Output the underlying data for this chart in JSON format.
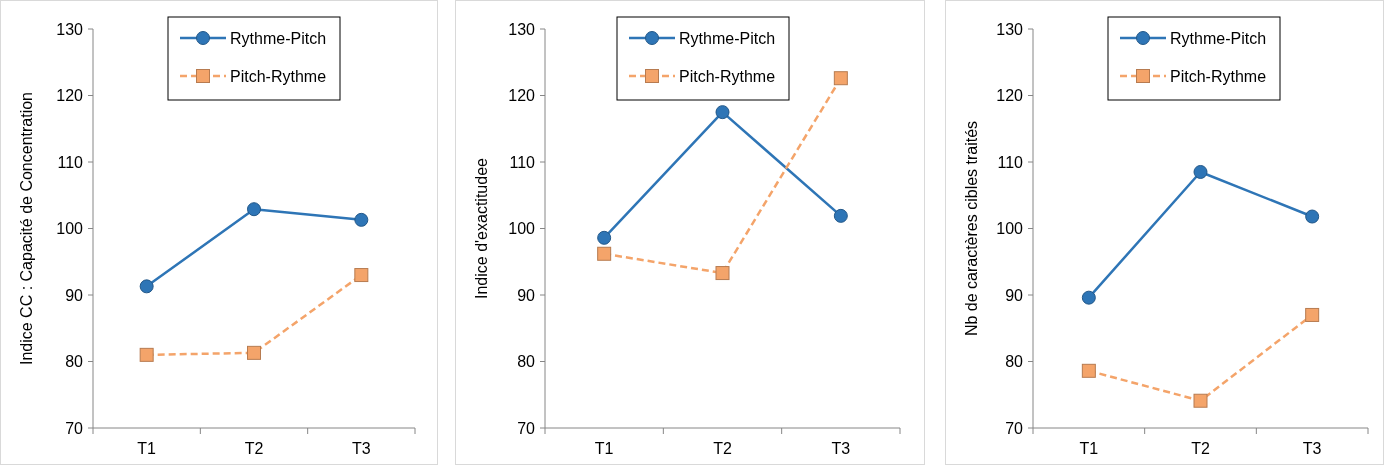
{
  "chart_data": [
    {
      "type": "line",
      "ylabel": "Indice CC : Capacité de Concentration",
      "categories": [
        "T1",
        "T2",
        "T3"
      ],
      "ylim": [
        70,
        130
      ],
      "yticks": [
        70,
        80,
        90,
        100,
        110,
        120,
        130
      ],
      "legend": "top",
      "series": [
        {
          "name": "Rythme-Pitch",
          "color": "#2e75b6",
          "marker": "circle",
          "line_style": "solid",
          "values": [
            91.3,
            102.9,
            101.3
          ]
        },
        {
          "name": "Pitch-Rythme",
          "color": "#f4a46a",
          "marker": "square",
          "line_style": "dashed",
          "values": [
            81.0,
            81.3,
            93.0
          ]
        }
      ]
    },
    {
      "type": "line",
      "ylabel": "Indice d'exactitudee",
      "categories": [
        "T1",
        "T2",
        "T3"
      ],
      "ylim": [
        70,
        130
      ],
      "yticks": [
        70,
        80,
        90,
        100,
        110,
        120,
        130
      ],
      "legend": "top",
      "series": [
        {
          "name": "Rythme-Pitch",
          "color": "#2e75b6",
          "marker": "circle",
          "line_style": "solid",
          "values": [
            98.6,
            117.5,
            101.9
          ]
        },
        {
          "name": "Pitch-Rythme",
          "color": "#f4a46a",
          "marker": "square",
          "line_style": "dashed",
          "values": [
            96.2,
            93.3,
            122.6
          ]
        }
      ]
    },
    {
      "type": "line",
      "ylabel": "Nb de caractères  cibles  traités",
      "categories": [
        "T1",
        "T2",
        "T3"
      ],
      "ylim": [
        70,
        130
      ],
      "yticks": [
        70,
        80,
        90,
        100,
        110,
        120,
        130
      ],
      "legend": "top",
      "series": [
        {
          "name": "Rythme-Pitch",
          "color": "#2e75b6",
          "marker": "circle",
          "line_style": "solid",
          "values": [
            89.6,
            108.5,
            101.8
          ]
        },
        {
          "name": "Pitch-Rythme",
          "color": "#f4a46a",
          "marker": "square",
          "line_style": "dashed",
          "values": [
            78.6,
            74.1,
            87.0
          ]
        }
      ]
    }
  ]
}
